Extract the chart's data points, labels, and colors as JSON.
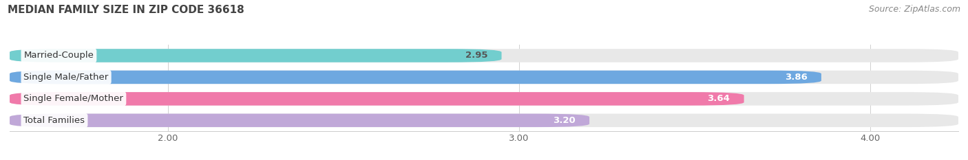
{
  "title": "MEDIAN FAMILY SIZE IN ZIP CODE 36618",
  "source": "Source: ZipAtlas.com",
  "categories": [
    "Married-Couple",
    "Single Male/Father",
    "Single Female/Mother",
    "Total Families"
  ],
  "values": [
    2.95,
    3.86,
    3.64,
    3.2
  ],
  "bar_colors": [
    "#72cece",
    "#6ea8e0",
    "#f07aaa",
    "#c0a8d8"
  ],
  "bar_bg_color": "#e8e8e8",
  "value_text_colors": [
    "#555555",
    "#ffffff",
    "#ffffff",
    "#ffffff"
  ],
  "xlim_min": 1.55,
  "xlim_max": 4.25,
  "xticks": [
    2.0,
    3.0,
    4.0
  ],
  "xtick_labels": [
    "2.00",
    "3.00",
    "4.00"
  ],
  "background_color": "#ffffff",
  "title_fontsize": 11,
  "label_fontsize": 9.5,
  "value_fontsize": 9.5,
  "source_fontsize": 9,
  "bar_height": 0.62,
  "bar_gap": 0.08
}
